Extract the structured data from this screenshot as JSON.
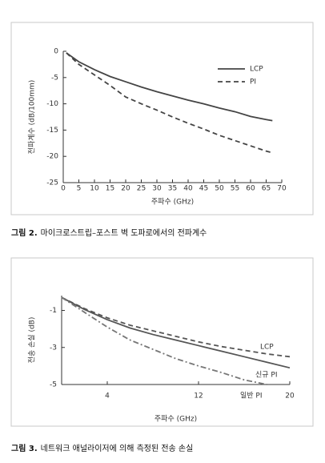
{
  "chart_data": [
    {
      "type": "line",
      "figure_label": "그림 2.",
      "caption": "마이크로스트립–포스트 벽 도파로에서의 전파계수",
      "xlabel": "주파수 (GHz)",
      "ylabel": "전파계수 (dB/100mm)",
      "xlim": [
        0,
        70
      ],
      "xticks": [
        0,
        5,
        10,
        15,
        20,
        25,
        30,
        35,
        40,
        45,
        50,
        55,
        60,
        65,
        70
      ],
      "ylim": [
        -25,
        0
      ],
      "yticks": [
        0,
        -5,
        -10,
        -15,
        -20,
        -25
      ],
      "legend": "upper right",
      "x": [
        1,
        5,
        10,
        15,
        20,
        25,
        30,
        35,
        40,
        45,
        50,
        55,
        60,
        65,
        67
      ],
      "series": [
        {
          "name": "LCP",
          "color": "#444444",
          "style": "solid",
          "values": [
            -0.3,
            -2,
            -3.5,
            -4.8,
            -5.8,
            -6.8,
            -7.7,
            -8.5,
            -9.3,
            -10,
            -10.8,
            -11.5,
            -12.4,
            -13,
            -13.2
          ]
        },
        {
          "name": "PI",
          "color": "#444444",
          "style": "dashed",
          "values": [
            -0.3,
            -2.5,
            -4.5,
            -6.5,
            -8.7,
            -10,
            -11.2,
            -12.5,
            -13.7,
            -14.8,
            -16,
            -17,
            -18,
            -19,
            -19.3
          ]
        }
      ]
    },
    {
      "type": "line",
      "figure_label": "그림 3.",
      "caption": "네트워크 애널라이저에 의해 측정된 전송 손실",
      "xlabel": "주파수 (GHz)",
      "ylabel": "전송 손실 (dB)",
      "xlim": [
        0,
        20
      ],
      "xticks": [
        4,
        12,
        20
      ],
      "ylim": [
        -5,
        -0.2
      ],
      "yticks": [
        -1,
        -3,
        -5
      ],
      "x": [
        0,
        2,
        4,
        6,
        8,
        10,
        12,
        14,
        16,
        18,
        20
      ],
      "series": [
        {
          "name": "LCP",
          "color": "#555555",
          "style": "dashed",
          "values": [
            -0.3,
            -0.9,
            -1.4,
            -1.8,
            -2.1,
            -2.4,
            -2.7,
            -2.95,
            -3.15,
            -3.35,
            -3.5
          ]
        },
        {
          "name": "신규 PI",
          "color": "#555555",
          "style": "solid",
          "values": [
            -0.3,
            -0.95,
            -1.5,
            -1.95,
            -2.3,
            -2.6,
            -2.9,
            -3.2,
            -3.5,
            -3.8,
            -4.1
          ]
        },
        {
          "name": "일반 PI",
          "color": "#777777",
          "style": "dashdot",
          "values": [
            -0.3,
            -1.1,
            -1.9,
            -2.6,
            -3.1,
            -3.6,
            -4.0,
            -4.35,
            -4.75,
            -5.0,
            null
          ]
        }
      ]
    }
  ]
}
